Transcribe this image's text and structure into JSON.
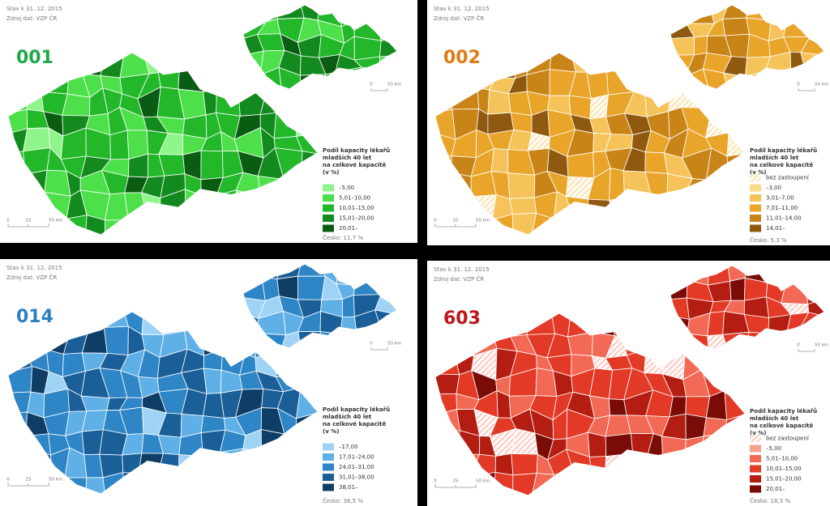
{
  "panels": [
    {
      "date": "Stav k 31. 12. 2015",
      "source": "Zdroj dat: VZP ČR",
      "code": "001",
      "code_color": "#1fa84a",
      "legend_title": [
        "Podíl kapacity lékařů",
        "mladších 40 let",
        "na celkové kapacitě",
        "(v %)"
      ],
      "legend": [
        {
          "label": "–5,00",
          "color": "#8ff58a"
        },
        {
          "label": "5,01–10,00",
          "color": "#4ee04a"
        },
        {
          "label": "10,01–15,00",
          "color": "#22b82a"
        },
        {
          "label": "15,01–20,00",
          "color": "#138a1e"
        },
        {
          "label": "20,01–",
          "color": "#0a5c12"
        }
      ],
      "scale": [
        "0",
        "25",
        "50 km"
      ],
      "inset_scale": [
        "0",
        "50 km"
      ],
      "footer": "Česko: 11,7 %"
    },
    {
      "date": "Stav k 31. 12. 2015",
      "source": "Zdroj dat: VZP ČR",
      "code": "002",
      "code_color": "#e07b14",
      "legend_title": [
        "Podíl kapacity lékařů",
        "mladších 40 let",
        "na celkové kapacitě",
        "(v %)"
      ],
      "legend": [
        {
          "label": "bez zastoupení",
          "color": "#fbe6b8",
          "hatched": true
        },
        {
          "label": "–3,00",
          "color": "#fbd98a"
        },
        {
          "label": "3,01–7,00",
          "color": "#f5c35a"
        },
        {
          "label": "7,01–11,00",
          "color": "#e9a52a"
        },
        {
          "label": "11,01–14,00",
          "color": "#c98418"
        },
        {
          "label": "14,01–",
          "color": "#8f5a10"
        }
      ],
      "scale": [
        "0",
        "25",
        "50 km"
      ],
      "inset_scale": [
        "0",
        "50 km"
      ],
      "footer": "Česko: 5,3 %"
    },
    {
      "date": "Stav k 31. 12. 2015",
      "source": "Zdroj dat: VZP ČR",
      "code": "014",
      "code_color": "#2a7fc0",
      "legend_title": [
        "Podíl kapacity lékařů",
        "mladších 40 let",
        "na celkové kapacitě",
        "(v %)"
      ],
      "legend": [
        {
          "label": "–17,00",
          "color": "#9fd3f5"
        },
        {
          "label": "17,01–24,00",
          "color": "#5fb0e6"
        },
        {
          "label": "24,01–31,00",
          "color": "#2f86c6"
        },
        {
          "label": "31,01–38,00",
          "color": "#1a5f98"
        },
        {
          "label": "38,01–",
          "color": "#0e3d66"
        }
      ],
      "scale": [
        "0",
        "25",
        "50 km"
      ],
      "inset_scale": [
        "0",
        "50 km"
      ],
      "footer": "Česko: 36,5 %"
    },
    {
      "date": "Stav k 31. 12. 2015",
      "source": "Zdroj dat: VZP ČR",
      "code": "603",
      "code_color": "#c0141c",
      "legend_title": [
        "Podíl kapacity lékařů",
        "mladších 40 let",
        "na celkové kapacitě",
        "(v %)"
      ],
      "legend": [
        {
          "label": "bez zastoupení",
          "color": "#fbd0c8",
          "hatched": true
        },
        {
          "label": "–5,00",
          "color": "#f8a090"
        },
        {
          "label": "5,01–10,00",
          "color": "#f26a55"
        },
        {
          "label": "10,01–15,00",
          "color": "#e23a26"
        },
        {
          "label": "15,01–20,00",
          "color": "#b41d12"
        },
        {
          "label": "20,01–",
          "color": "#7a0c08"
        }
      ],
      "scale": [
        "0",
        "25",
        "50 km"
      ],
      "inset_scale": [
        "0",
        "50 km"
      ],
      "footer": "Česko: 18,3 %"
    }
  ]
}
